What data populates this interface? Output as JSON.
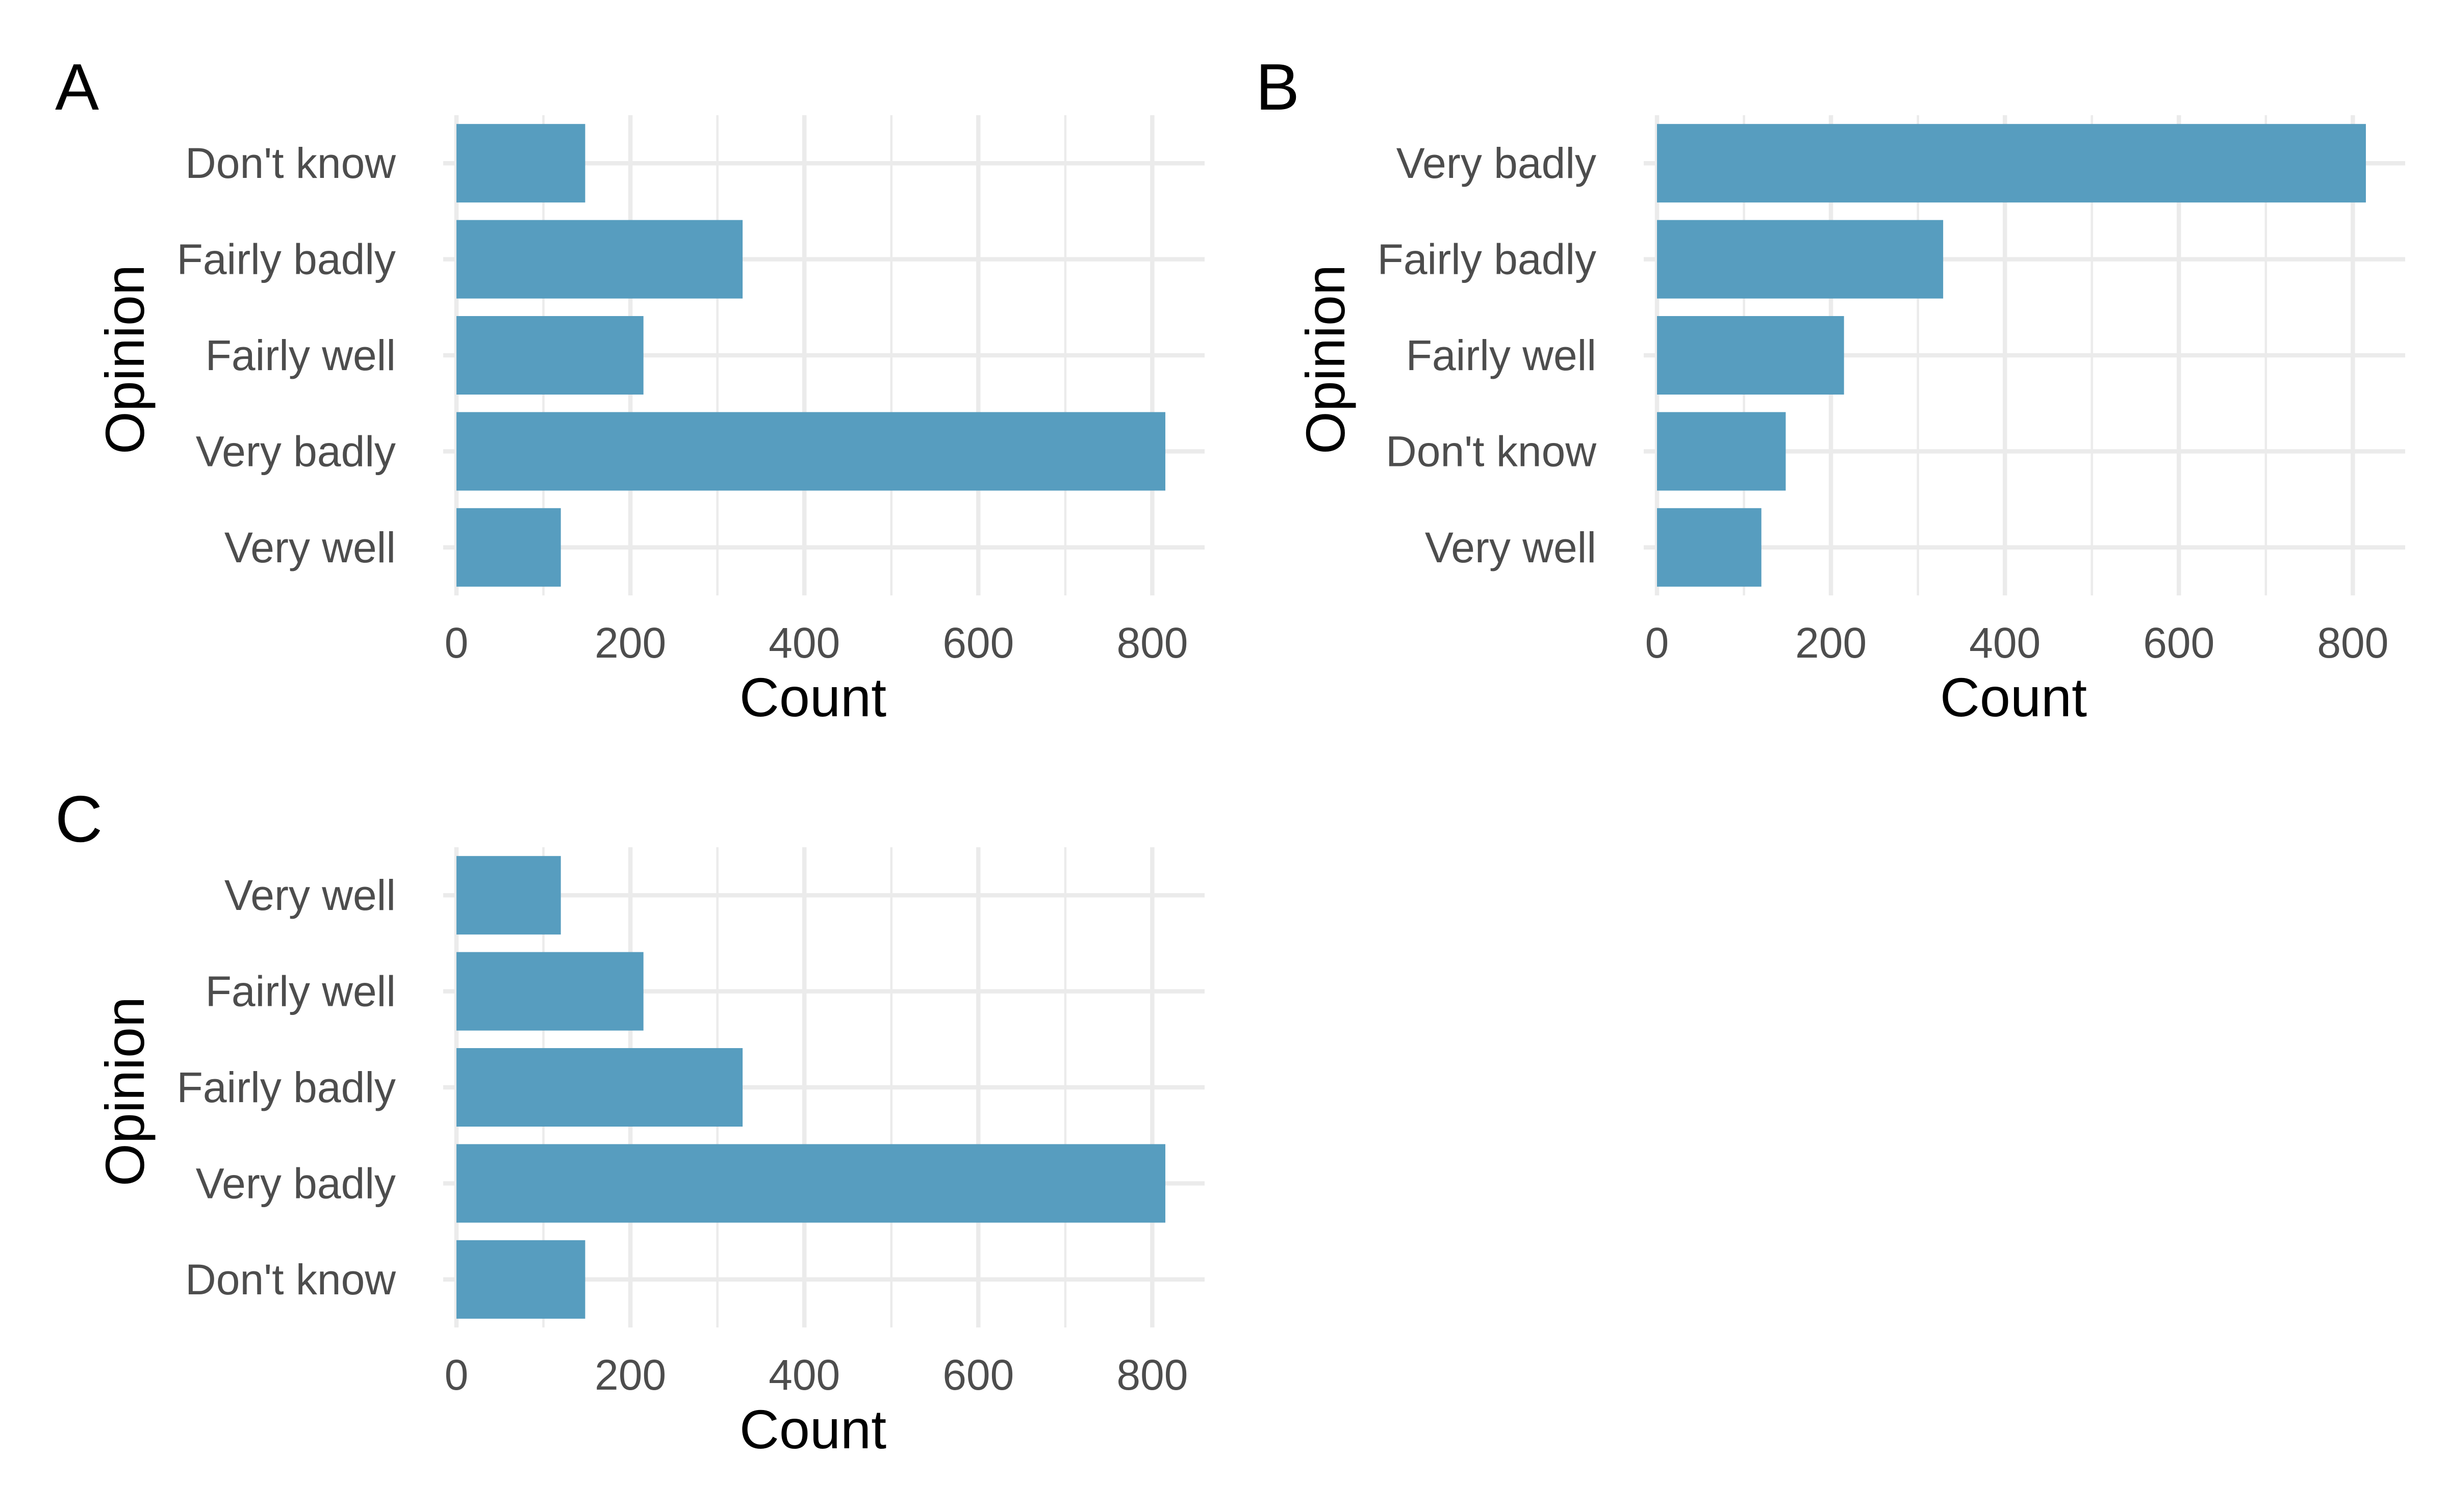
{
  "colors": {
    "bar": "#579dbf",
    "grid": "#ebebeb",
    "tick_text": "#4d4d4d",
    "title_text": "#000000",
    "background": "#ffffff"
  },
  "chart_data": [
    {
      "type": "bar",
      "orientation": "horizontal",
      "tag": "A",
      "xlabel": "Count",
      "ylabel": "Opinion",
      "xlim": [
        0,
        860
      ],
      "x_ticks": [
        0,
        200,
        400,
        600,
        800
      ],
      "grid": true,
      "categories": [
        "Don't know",
        "Fairly badly",
        "Fairly well",
        "Very badly",
        "Very well"
      ],
      "values": [
        148,
        329,
        215,
        815,
        120
      ]
    },
    {
      "type": "bar",
      "orientation": "horizontal",
      "tag": "B",
      "xlabel": "Count",
      "ylabel": "Opinion",
      "xlim": [
        0,
        860
      ],
      "x_ticks": [
        0,
        200,
        400,
        600,
        800
      ],
      "grid": true,
      "categories": [
        "Very badly",
        "Fairly badly",
        "Fairly well",
        "Don't know",
        "Very well"
      ],
      "values": [
        815,
        329,
        215,
        148,
        120
      ]
    },
    {
      "type": "bar",
      "orientation": "horizontal",
      "tag": "C",
      "xlabel": "Count",
      "ylabel": "Opinion",
      "xlim": [
        0,
        860
      ],
      "x_ticks": [
        0,
        200,
        400,
        600,
        800
      ],
      "grid": true,
      "categories": [
        "Very well",
        "Fairly well",
        "Fairly badly",
        "Very badly",
        "Don't know"
      ],
      "values": [
        120,
        215,
        329,
        815,
        148
      ]
    }
  ]
}
